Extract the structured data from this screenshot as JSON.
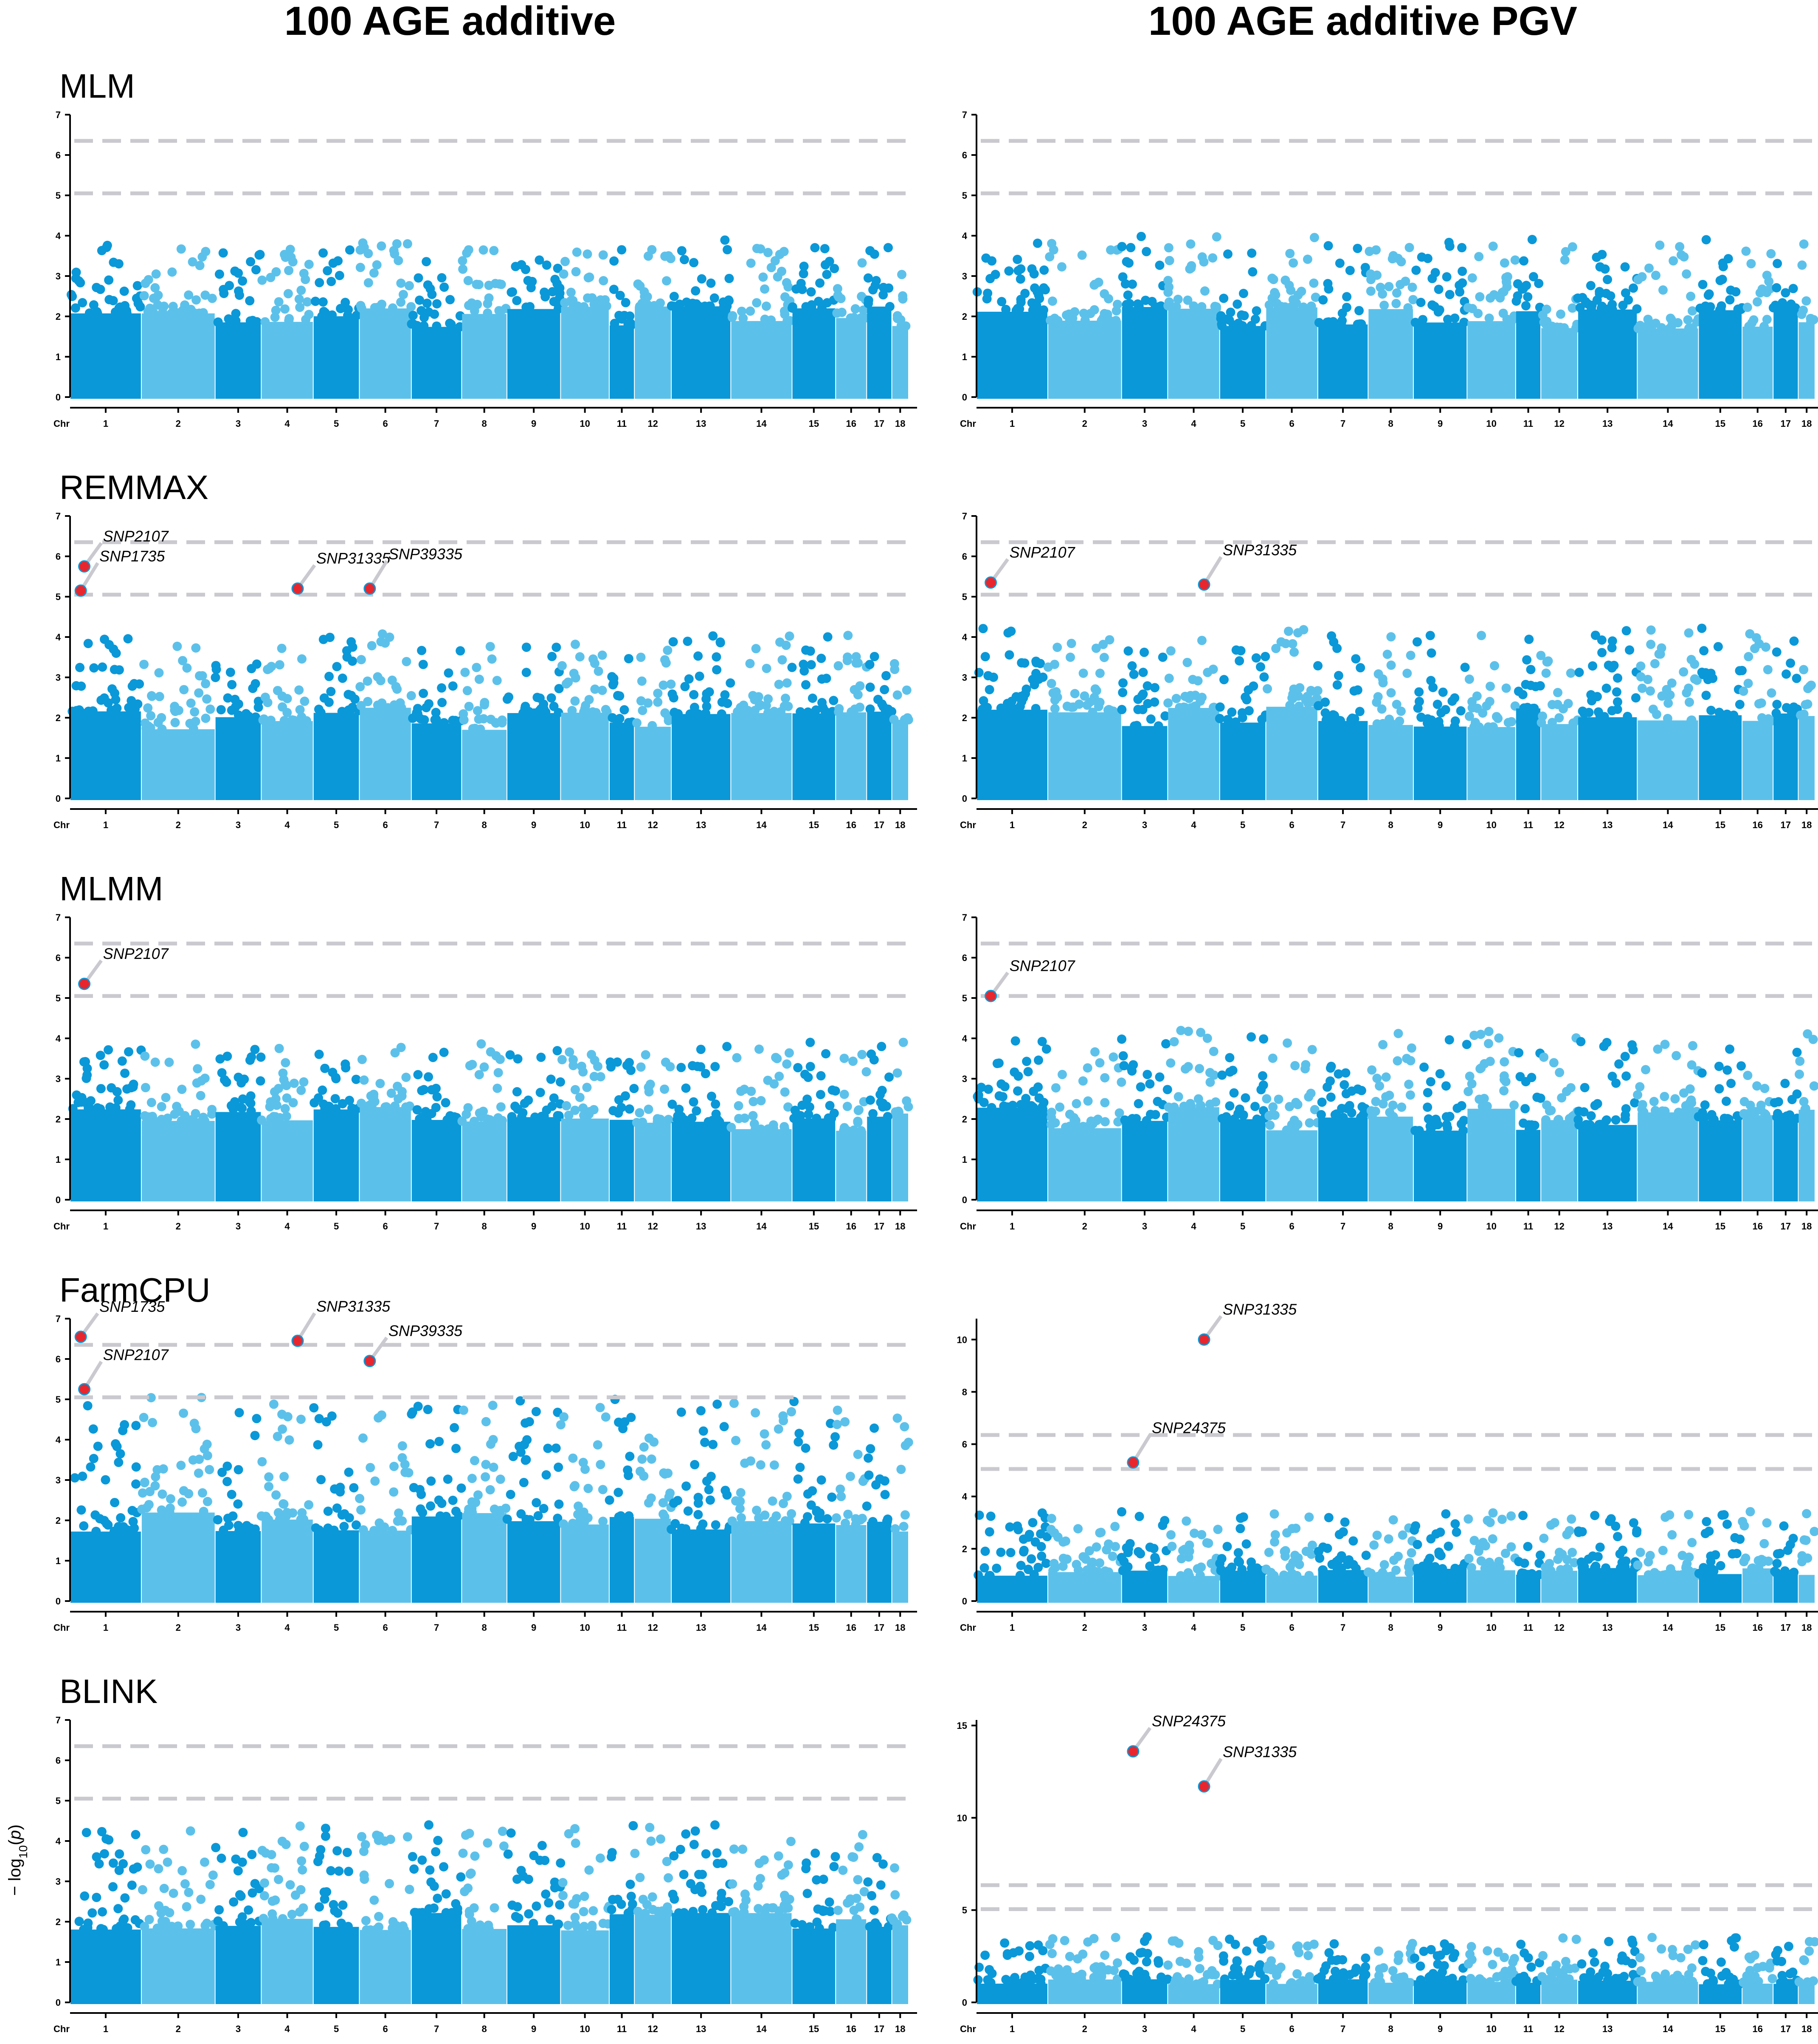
{
  "column_titles": [
    "100 AGE additive",
    "100 AGE additive PGV"
  ],
  "row_titles": [
    "MLM",
    "REMMAX",
    "MLMM",
    "FarmCPU",
    "BLINK"
  ],
  "y_axis_label": "−log10(p)",
  "colors": {
    "dark": "#0a98d8",
    "light": "#5cc1ea",
    "highlight": "#e8262d",
    "threshold": "#c9c9cf",
    "axis": "#000000"
  },
  "chart_data": [
    {
      "id": "mlm_add",
      "type": "scatter",
      "title": "MLM",
      "column": 0,
      "row": 0,
      "ylim": [
        0,
        7
      ],
      "yticks": [
        0,
        1,
        2,
        3,
        4,
        5,
        6,
        7
      ],
      "thresholds": [
        5.05,
        6.35
      ],
      "peak_base": 3.0,
      "highlights": []
    },
    {
      "id": "mlm_pgv",
      "type": "scatter",
      "title": "",
      "column": 1,
      "row": 0,
      "ylim": [
        0,
        7
      ],
      "yticks": [
        0,
        1,
        2,
        3,
        4,
        5,
        6,
        7
      ],
      "thresholds": [
        5.05,
        6.35
      ],
      "peak_base": 3.1,
      "highlights": []
    },
    {
      "id": "remmax_add",
      "type": "scatter",
      "title": "REMMAX",
      "column": 0,
      "row": 1,
      "ylim": [
        0,
        7
      ],
      "yticks": [
        0,
        1,
        2,
        3,
        4,
        5,
        6,
        7
      ],
      "thresholds": [
        5.05,
        6.35
      ],
      "peak_base": 3.2,
      "highlights": [
        {
          "label": "SNP2107",
          "chr": 1,
          "pos": 0.2,
          "y": 5.75
        },
        {
          "label": "SNP1735",
          "chr": 1,
          "pos": 0.15,
          "y": 5.15
        },
        {
          "label": "SNP31335",
          "chr": 4,
          "pos": 0.7,
          "y": 5.2
        },
        {
          "label": "SNP39335",
          "chr": 6,
          "pos": 0.2,
          "y": 5.2
        }
      ]
    },
    {
      "id": "remmax_pgv",
      "type": "scatter",
      "title": "",
      "column": 1,
      "row": 1,
      "ylim": [
        0,
        7
      ],
      "yticks": [
        0,
        1,
        2,
        3,
        4,
        5,
        6,
        7
      ],
      "thresholds": [
        5.05,
        6.35
      ],
      "peak_base": 3.4,
      "highlights": [
        {
          "label": "SNP2107",
          "chr": 1,
          "pos": 0.2,
          "y": 5.35
        },
        {
          "label": "SNP31335",
          "chr": 4,
          "pos": 0.7,
          "y": 5.3
        }
      ]
    },
    {
      "id": "mlmm_add",
      "type": "scatter",
      "title": "MLMM",
      "column": 0,
      "row": 2,
      "ylim": [
        0,
        7
      ],
      "yticks": [
        0,
        1,
        2,
        3,
        4,
        5,
        6,
        7
      ],
      "thresholds": [
        5.05,
        6.35
      ],
      "peak_base": 3.1,
      "highlights": [
        {
          "label": "SNP2107",
          "chr": 1,
          "pos": 0.2,
          "y": 5.35
        }
      ]
    },
    {
      "id": "mlmm_pgv",
      "type": "scatter",
      "title": "",
      "column": 1,
      "row": 2,
      "ylim": [
        0,
        7
      ],
      "yticks": [
        0,
        1,
        2,
        3,
        4,
        5,
        6,
        7
      ],
      "thresholds": [
        5.05,
        6.35
      ],
      "peak_base": 3.3,
      "highlights": [
        {
          "label": "SNP2107",
          "chr": 1,
          "pos": 0.2,
          "y": 5.05
        }
      ]
    },
    {
      "id": "farmcpu_add",
      "type": "scatter",
      "title": "FarmCPU",
      "column": 0,
      "row": 3,
      "ylim": [
        0,
        7
      ],
      "yticks": [
        0,
        1,
        2,
        3,
        4,
        5,
        6,
        7
      ],
      "thresholds": [
        5.05,
        6.35
      ],
      "peak_base": 4.2,
      "highlights": [
        {
          "label": "SNP1735",
          "chr": 1,
          "pos": 0.15,
          "y": 6.55
        },
        {
          "label": "SNP2107",
          "chr": 1,
          "pos": 0.2,
          "y": 5.25
        },
        {
          "label": "SNP39335",
          "chr": 6,
          "pos": 0.2,
          "y": 5.95
        },
        {
          "label": "SNP31335",
          "chr": 4,
          "pos": 0.7,
          "y": 6.45
        }
      ]
    },
    {
      "id": "farmcpu_pgv",
      "type": "scatter",
      "title": "",
      "column": 1,
      "row": 3,
      "ylim": [
        0,
        10.8
      ],
      "yticks": [
        0,
        2,
        4,
        6,
        8,
        10
      ],
      "thresholds": [
        5.05,
        6.35
      ],
      "peak_base": 3.1,
      "highlights": [
        {
          "label": "SNP31335",
          "chr": 4,
          "pos": 0.7,
          "y": 10.0
        },
        {
          "label": "SNP24375",
          "chr": 3,
          "pos": 0.25,
          "y": 5.3
        }
      ]
    },
    {
      "id": "blink_add",
      "type": "scatter",
      "title": "BLINK",
      "column": 0,
      "row": 4,
      "ylim": [
        0,
        7
      ],
      "yticks": [
        0,
        1,
        2,
        3,
        4,
        5,
        6,
        7
      ],
      "thresholds": [
        5.05,
        6.35
      ],
      "peak_base": 3.6,
      "highlights": []
    },
    {
      "id": "blink_pgv",
      "type": "scatter",
      "title": "",
      "column": 1,
      "row": 4,
      "ylim": [
        0,
        15.3
      ],
      "yticks": [
        0,
        5,
        10,
        15
      ],
      "thresholds": [
        5.05,
        6.35
      ],
      "peak_base": 3.0,
      "highlights": [
        {
          "label": "SNP24375",
          "chr": 3,
          "pos": 0.25,
          "y": 13.6
        },
        {
          "label": "SNP31335",
          "chr": 4,
          "pos": 0.7,
          "y": 11.7
        }
      ]
    }
  ],
  "chromosomes": {
    "axis_label": "Chr",
    "labels": [
      "1",
      "2",
      "3",
      "4",
      "5",
      "6",
      "7",
      "8",
      "9",
      "10",
      "11",
      "12",
      "13",
      "14",
      "15",
      "16",
      "17",
      "18"
    ],
    "shading": [
      "dark",
      "light",
      "dark",
      "light",
      "dark",
      "light",
      "dark",
      "light",
      "dark",
      "light",
      "dark",
      "light",
      "dark",
      "light",
      "dark",
      "light",
      "dark",
      "light"
    ]
  }
}
